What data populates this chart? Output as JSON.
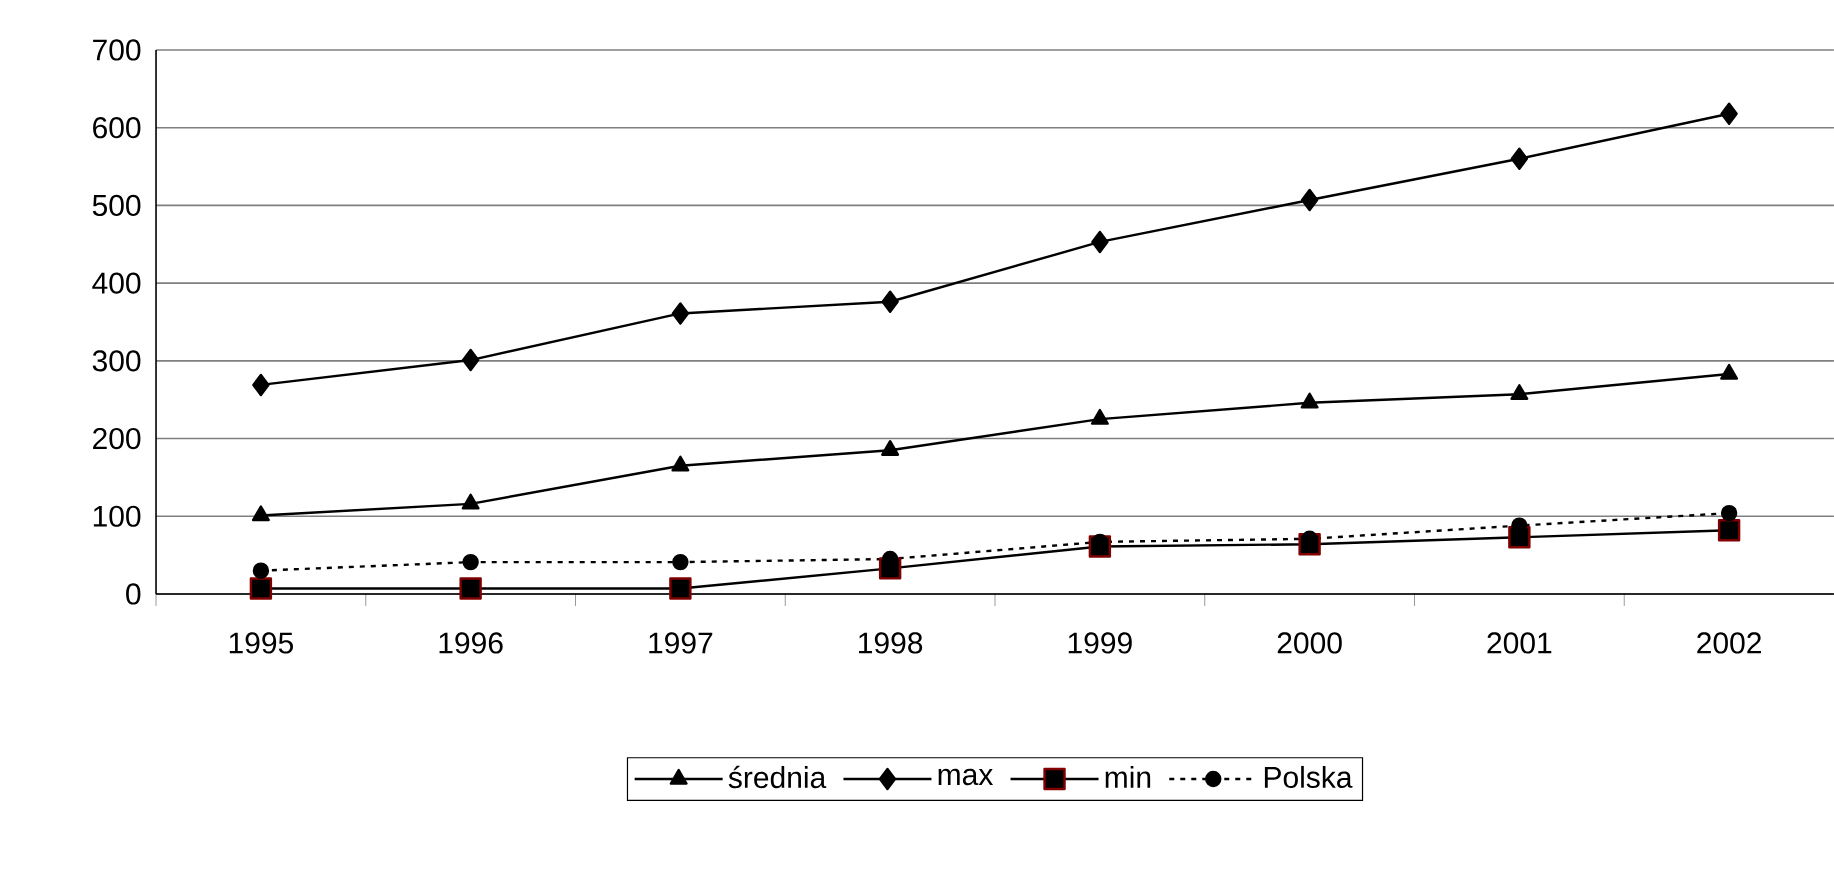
{
  "chart_data": {
    "type": "line",
    "categories": [
      "1995",
      "1996",
      "1997",
      "1998",
      "1999",
      "2000",
      "2001",
      "2002"
    ],
    "series": [
      {
        "name": "średnia",
        "color": "#000000",
        "marker": "triangle",
        "line_style": "solid",
        "values": [
          101,
          116,
          165,
          185,
          225,
          246,
          257,
          283
        ]
      },
      {
        "name": "max",
        "color": "#000000",
        "marker": "diamond",
        "line_style": "solid",
        "values": [
          269,
          301,
          361,
          376,
          453,
          507,
          560,
          618
        ]
      },
      {
        "name": "min",
        "color": "#800000",
        "marker": "square",
        "line_style": "solid",
        "values": [
          7,
          7,
          7,
          33,
          61,
          64,
          73,
          82
        ]
      },
      {
        "name": "Polska",
        "color": "#000000",
        "marker": "circle",
        "line_style": "dotted",
        "values": [
          30,
          41,
          41,
          45,
          67,
          71,
          88,
          104
        ]
      }
    ],
    "ylim": [
      0,
      700
    ],
    "yticks": [
      0,
      100,
      200,
      300,
      400,
      500,
      600,
      700
    ],
    "grid": "y",
    "legend": "bottom"
  }
}
